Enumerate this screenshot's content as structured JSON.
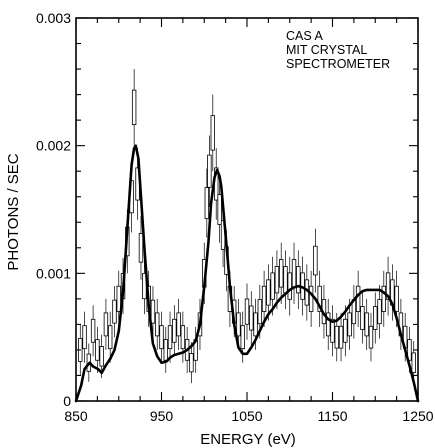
{
  "chart_data": {
    "type": "line",
    "title": "",
    "annotation": [
      "CAS A",
      "MIT CRYSTAL",
      "SPECTROMETER"
    ],
    "xlabel": "ENERGY (eV)",
    "ylabel": "PHOTONS / SEC",
    "xlim": [
      850,
      1250
    ],
    "ylim": [
      0,
      0.003
    ],
    "x_ticks": [
      850,
      950,
      1050,
      1150,
      1250
    ],
    "y_ticks": [
      0,
      0.001,
      0.002,
      0.003
    ],
    "x_tick_labels": [
      "850",
      "950",
      "1050",
      "1150",
      "1250"
    ],
    "y_tick_labels": [
      "0",
      "0.001",
      "0.002",
      "0.003"
    ],
    "grid": false,
    "series": [
      {
        "kind": "model-curve",
        "x": [
          850,
          856,
          860,
          866,
          870,
          876,
          880,
          885,
          890,
          895,
          900,
          905,
          908,
          912,
          915,
          918,
          920,
          923,
          926,
          930,
          935,
          940,
          945,
          950,
          956,
          960,
          965,
          970,
          975,
          980,
          985,
          990,
          995,
          1000,
          1005,
          1008,
          1012,
          1015,
          1018,
          1020,
          1023,
          1027,
          1030,
          1035,
          1040,
          1045,
          1050,
          1055,
          1060,
          1065,
          1070,
          1075,
          1080,
          1085,
          1090,
          1095,
          1100,
          1105,
          1110,
          1115,
          1120,
          1125,
          1130,
          1135,
          1140,
          1145,
          1150,
          1155,
          1160,
          1165,
          1170,
          1175,
          1180,
          1185,
          1190,
          1195,
          1200,
          1205,
          1210,
          1215,
          1220,
          1225,
          1230,
          1235,
          1240,
          1245,
          1250
        ],
        "y": [
          0.0,
          0.00012,
          0.00025,
          0.0003,
          0.00027,
          0.00025,
          0.00022,
          0.00028,
          0.00033,
          0.0004,
          0.00055,
          0.00085,
          0.00115,
          0.00155,
          0.00185,
          0.00198,
          0.002,
          0.0019,
          0.0016,
          0.0012,
          0.00075,
          0.00045,
          0.00035,
          0.0003,
          0.00031,
          0.00034,
          0.00036,
          0.00037,
          0.00038,
          0.0004,
          0.00043,
          0.00047,
          0.0006,
          0.0009,
          0.00125,
          0.00155,
          0.00175,
          0.00181,
          0.00176,
          0.00168,
          0.00145,
          0.00115,
          0.0009,
          0.0006,
          0.00042,
          0.00037,
          0.00037,
          0.00042,
          0.00048,
          0.00055,
          0.00062,
          0.00068,
          0.00072,
          0.00077,
          0.00081,
          0.00084,
          0.00087,
          0.00089,
          0.0009,
          0.00089,
          0.00087,
          0.00084,
          0.0008,
          0.00074,
          0.00068,
          0.00064,
          0.00062,
          0.00063,
          0.00066,
          0.0007,
          0.00075,
          0.00079,
          0.00083,
          0.00086,
          0.00087,
          0.00087,
          0.00087,
          0.00087,
          0.00085,
          0.00082,
          0.00076,
          0.00065,
          0.00052,
          0.0004,
          0.00028,
          0.00015,
          0.0
        ]
      },
      {
        "kind": "data-points",
        "x": [
          855,
          860,
          865,
          870,
          875,
          880,
          885,
          890,
          895,
          900,
          905,
          910,
          915,
          918,
          922,
          926,
          930,
          935,
          940,
          945,
          950,
          955,
          960,
          965,
          970,
          975,
          980,
          985,
          990,
          995,
          1000,
          1003,
          1006,
          1010,
          1014,
          1018,
          1022,
          1026,
          1030,
          1035,
          1040,
          1045,
          1050,
          1055,
          1060,
          1065,
          1070,
          1075,
          1080,
          1085,
          1090,
          1095,
          1100,
          1105,
          1110,
          1115,
          1120,
          1125,
          1130,
          1135,
          1140,
          1145,
          1150,
          1155,
          1160,
          1165,
          1170,
          1175,
          1180,
          1185,
          1190,
          1195,
          1200,
          1205,
          1210,
          1215,
          1220,
          1225,
          1230,
          1235,
          1240,
          1245
        ],
        "y": [
          0.0004,
          0.0005,
          0.0003,
          0.00055,
          0.0004,
          0.00035,
          0.0006,
          0.0005,
          0.0007,
          0.0008,
          0.0009,
          0.00125,
          0.0016,
          0.0023,
          0.0017,
          0.0012,
          0.0009,
          0.0008,
          0.0007,
          0.0006,
          0.0005,
          0.0004,
          0.0005,
          0.00055,
          0.0006,
          0.0005,
          0.0004,
          0.0003,
          0.0004,
          0.0006,
          0.001,
          0.00155,
          0.0018,
          0.0021,
          0.0017,
          0.0015,
          0.0013,
          0.0011,
          0.0008,
          0.0007,
          0.0006,
          0.0005,
          0.0007,
          0.00065,
          0.0006,
          0.0007,
          0.0008,
          0.00085,
          0.0009,
          0.00095,
          0.001,
          0.00095,
          0.0009,
          0.001,
          0.00095,
          0.0009,
          0.00085,
          0.0008,
          0.0011,
          0.0008,
          0.0007,
          0.0006,
          0.00055,
          0.0005,
          0.0005,
          0.00055,
          0.0006,
          0.0007,
          0.0008,
          0.00065,
          0.0006,
          0.0005,
          0.00065,
          0.0007,
          0.0008,
          0.0009,
          0.00085,
          0.0008,
          0.0006,
          0.0005,
          0.0004,
          0.0003
        ],
        "yerr": [
          0.0002,
          0.0002,
          0.00015,
          0.0002,
          0.00018,
          0.00017,
          0.0002,
          0.0002,
          0.0002,
          0.00022,
          0.00022,
          0.00025,
          0.00028,
          0.0003,
          0.00028,
          0.00025,
          0.00022,
          0.00022,
          0.0002,
          0.0002,
          0.0002,
          0.00018,
          0.0002,
          0.0002,
          0.0002,
          0.0002,
          0.00018,
          0.00016,
          0.00018,
          0.0002,
          0.00024,
          0.00027,
          0.00028,
          0.0003,
          0.00028,
          0.00026,
          0.00025,
          0.00024,
          0.00022,
          0.0002,
          0.0002,
          0.0002,
          0.00022,
          0.00021,
          0.0002,
          0.00021,
          0.00022,
          0.00022,
          0.00023,
          0.00023,
          0.00024,
          0.00023,
          0.00023,
          0.00024,
          0.00023,
          0.00023,
          0.00022,
          0.00022,
          0.00025,
          0.00022,
          0.00021,
          0.0002,
          0.0002,
          0.00019,
          0.00019,
          0.0002,
          0.0002,
          0.00021,
          0.00022,
          0.0002,
          0.0002,
          0.00019,
          0.0002,
          0.00021,
          0.00022,
          0.00023,
          0.00022,
          0.00022,
          0.0002,
          0.00019,
          0.00018,
          0.00017
        ]
      }
    ]
  }
}
